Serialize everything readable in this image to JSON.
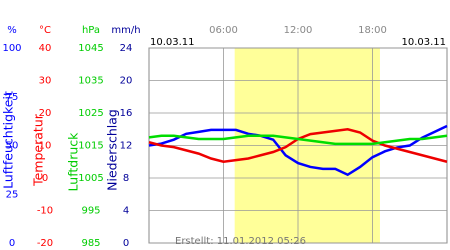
{
  "chart_data": {
    "type": "line",
    "x": [
      0,
      1,
      2,
      3,
      4,
      5,
      6,
      7,
      8,
      9,
      10,
      11,
      12,
      13,
      14,
      15,
      16,
      17,
      18,
      19,
      20,
      21,
      22,
      23,
      24
    ],
    "xlim": [
      0,
      24
    ],
    "xticks": [
      {
        "value": 6,
        "label": "06:00"
      },
      {
        "value": 12,
        "label": "12:00"
      },
      {
        "value": 18,
        "label": "18:00"
      }
    ],
    "date_left": "10.03.11",
    "date_right": "10.03.11",
    "daylight": [
      6.9,
      18.6
    ],
    "footer": "Erstellt: 11.01.2012 05:26",
    "grid": true,
    "y_axes": [
      {
        "name": "Luftfeuchtigkeit",
        "unit": "%",
        "color": "#0000ff",
        "ylim": [
          0,
          100
        ],
        "yticks": [
          0,
          25,
          50,
          75,
          100
        ]
      },
      {
        "name": "Temperatur",
        "unit": "°C",
        "color": "#ff0000",
        "ylim": [
          -20,
          40
        ],
        "yticks": [
          -20,
          -10,
          0,
          10,
          20,
          30,
          40
        ]
      },
      {
        "name": "Luftdruck",
        "unit": "hPa",
        "color": "#00cc00",
        "ylim": [
          985,
          1045
        ],
        "yticks": [
          985,
          995,
          1005,
          1015,
          1025,
          1035,
          1045
        ]
      },
      {
        "name": "Niederschlag",
        "unit": "mm/h",
        "color": "#000099",
        "ylim": [
          0,
          24
        ],
        "yticks": [
          0,
          4,
          8,
          12,
          16,
          20,
          24
        ]
      }
    ],
    "series": [
      {
        "axis": 0,
        "color": "#0000ff",
        "values": [
          50,
          51,
          53,
          56,
          57,
          58,
          58,
          58,
          56,
          55,
          53,
          45,
          41,
          39,
          38,
          38,
          35,
          39,
          44,
          47,
          49,
          50,
          54,
          57,
          60
        ]
      },
      {
        "axis": 1,
        "color": "#ee0000",
        "values": [
          11,
          10,
          9.5,
          8.5,
          7.5,
          6,
          5,
          5.5,
          6,
          7,
          8,
          9.5,
          12,
          13.5,
          14,
          14.5,
          15,
          14,
          11.5,
          10,
          9,
          8,
          7,
          6,
          5
        ]
      },
      {
        "axis": 2,
        "color": "#00dd00",
        "values": [
          1017.5,
          1018,
          1018,
          1017.5,
          1017,
          1017,
          1017,
          1017.5,
          1018,
          1018,
          1018,
          1017.5,
          1017,
          1016.5,
          1016,
          1015.5,
          1015.5,
          1015.5,
          1015.5,
          1016,
          1016.5,
          1017,
          1017,
          1017.5,
          1018
        ]
      }
    ]
  }
}
